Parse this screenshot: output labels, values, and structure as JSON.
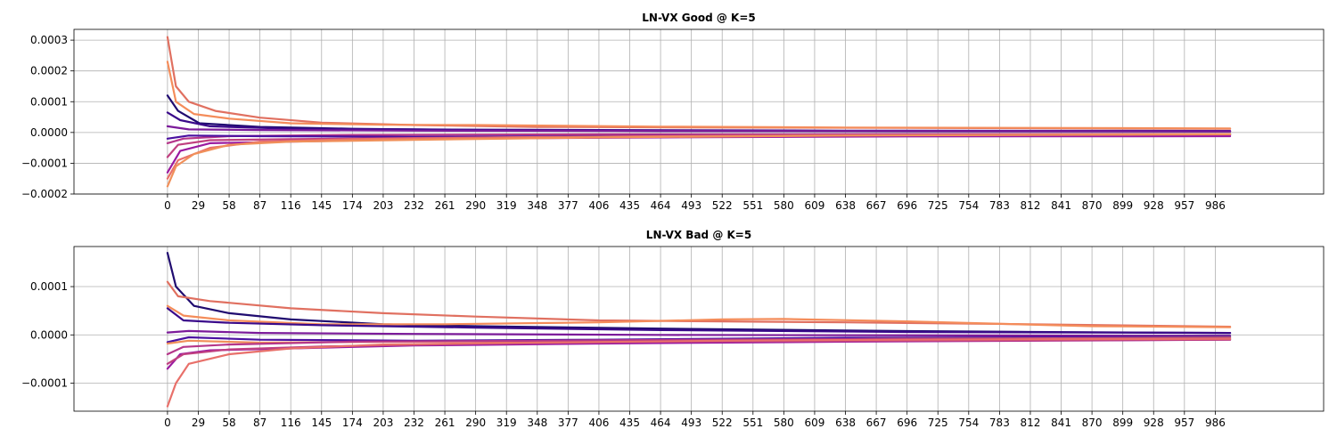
{
  "chart_data": [
    {
      "type": "line",
      "title": "LN-VX Good @ K=5",
      "xlim": [
        -88,
        1088
      ],
      "ylim": [
        -0.0002,
        0.000335
      ],
      "yticks": [
        {
          "value": 0.0003,
          "label": "0.0003"
        },
        {
          "value": 0.0002,
          "label": "0.0002"
        },
        {
          "value": 0.0001,
          "label": "0.0001"
        },
        {
          "value": 0.0,
          "label": "0.0000"
        },
        {
          "value": -0.0001,
          "label": "−0.0001"
        },
        {
          "value": -0.0002,
          "label": "−0.0002"
        }
      ],
      "grid": true,
      "series": [
        {
          "color": "#e07060",
          "points": [
            [
              0,
              0.00031
            ],
            [
              8,
              0.00015
            ],
            [
              20,
              0.0001
            ],
            [
              45,
              7e-05
            ],
            [
              87,
              4.8e-05
            ],
            [
              145,
              3.2e-05
            ],
            [
              232,
              2.4e-05
            ],
            [
              348,
              1.8e-05
            ],
            [
              522,
              1.6e-05
            ],
            [
              696,
              1.5e-05
            ],
            [
              870,
              1.3e-05
            ],
            [
              1000,
              1.2e-05
            ]
          ]
        },
        {
          "color": "#f48c5a",
          "points": [
            [
              0,
              0.00023
            ],
            [
              8,
              0.0001
            ],
            [
              25,
              6e-05
            ],
            [
              58,
              4.5e-05
            ],
            [
              116,
              3e-05
            ],
            [
              203,
              2.5e-05
            ],
            [
              290,
              2.4e-05
            ],
            [
              464,
              1.9e-05
            ],
            [
              638,
              1.6e-05
            ],
            [
              812,
              1.5e-05
            ],
            [
              1000,
              1.3e-05
            ]
          ]
        },
        {
          "color": "#200c70",
          "points": [
            [
              0,
              0.00012
            ],
            [
              10,
              7e-05
            ],
            [
              30,
              3e-05
            ],
            [
              87,
              1.8e-05
            ],
            [
              174,
              1.2e-05
            ],
            [
              290,
              8e-06
            ],
            [
              464,
              5e-06
            ],
            [
              696,
              4e-06
            ],
            [
              1000,
              3e-06
            ]
          ]
        },
        {
          "color": "#3a0a8a",
          "points": [
            [
              0,
              6.5e-05
            ],
            [
              12,
              4e-05
            ],
            [
              40,
              2e-05
            ],
            [
              116,
              1.2e-05
            ],
            [
              232,
              1e-05
            ],
            [
              406,
              8e-06
            ],
            [
              638,
              6e-06
            ],
            [
              1000,
              5e-06
            ]
          ]
        },
        {
          "color": "#7b1a9a",
          "points": [
            [
              0,
              2e-05
            ],
            [
              20,
              1e-05
            ],
            [
              87,
              8e-06
            ],
            [
              232,
              6e-06
            ],
            [
              464,
              5e-06
            ],
            [
              1000,
              4e-06
            ]
          ]
        },
        {
          "color": "#b5368a",
          "points": [
            [
              0,
              -3.5e-05
            ],
            [
              15,
              -2e-05
            ],
            [
              58,
              -1.2e-05
            ],
            [
              174,
              -8e-06
            ],
            [
              406,
              -6e-06
            ],
            [
              1000,
              -5e-06
            ]
          ]
        },
        {
          "color": "#4a10a0",
          "points": [
            [
              0,
              -2e-05
            ],
            [
              20,
              -1e-05
            ],
            [
              87,
              -1.2e-05
            ],
            [
              232,
              -1.4e-05
            ],
            [
              406,
              -1.2e-05
            ],
            [
              638,
              -1e-05
            ],
            [
              1000,
              -8e-06
            ]
          ]
        },
        {
          "color": "#c04080",
          "points": [
            [
              0,
              -8e-05
            ],
            [
              10,
              -4e-05
            ],
            [
              40,
              -2.5e-05
            ],
            [
              116,
              -2.2e-05
            ],
            [
              232,
              -1.8e-05
            ],
            [
              464,
              -1.2e-05
            ],
            [
              1000,
              -8e-06
            ]
          ]
        },
        {
          "color": "#9a1aa0",
          "points": [
            [
              0,
              -0.00013
            ],
            [
              12,
              -6e-05
            ],
            [
              40,
              -3.5e-05
            ],
            [
              116,
              -3e-05
            ],
            [
              261,
              -2e-05
            ],
            [
              464,
              -1.6e-05
            ],
            [
              696,
              -1.3e-05
            ],
            [
              1000,
              -1.2e-05
            ]
          ]
        },
        {
          "color": "#e8706a",
          "points": [
            [
              0,
              -0.00015
            ],
            [
              10,
              -9e-05
            ],
            [
              40,
              -5e-05
            ],
            [
              87,
              -3e-05
            ],
            [
              174,
              -2.2e-05
            ],
            [
              348,
              -1.5e-05
            ],
            [
              580,
              -1e-05
            ],
            [
              1000,
              -5e-06
            ]
          ]
        },
        {
          "color": "#f0905a",
          "points": [
            [
              0,
              -0.000175
            ],
            [
              8,
              -0.00011
            ],
            [
              25,
              -7e-05
            ],
            [
              58,
              -4e-05
            ],
            [
              116,
              -3e-05
            ],
            [
              232,
              -2.4e-05
            ],
            [
              406,
              -1.6e-05
            ],
            [
              638,
              -1e-05
            ],
            [
              1000,
              -6e-06
            ]
          ]
        }
      ]
    },
    {
      "type": "line",
      "title": "LN-VX Bad @ K=5",
      "xlim": [
        -88,
        1088
      ],
      "ylim": [
        -0.000158,
        0.000183
      ],
      "yticks": [
        {
          "value": 0.0001,
          "label": "0.0001"
        },
        {
          "value": 0.0,
          "label": "0.0000"
        },
        {
          "value": -0.0001,
          "label": "−0.0001"
        }
      ],
      "grid": true,
      "series": [
        {
          "color": "#200c70",
          "points": [
            [
              0,
              0.00017
            ],
            [
              8,
              0.0001
            ],
            [
              25,
              6e-05
            ],
            [
              58,
              4.5e-05
            ],
            [
              116,
              3.2e-05
            ],
            [
              203,
              2.2e-05
            ],
            [
              290,
              1.8e-05
            ],
            [
              464,
              1.3e-05
            ],
            [
              638,
              9e-06
            ],
            [
              812,
              6e-06
            ],
            [
              1000,
              4e-06
            ]
          ]
        },
        {
          "color": "#e07060",
          "points": [
            [
              0,
              0.00011
            ],
            [
              10,
              8e-05
            ],
            [
              40,
              7e-05
            ],
            [
              116,
              5.5e-05
            ],
            [
              203,
              4.5e-05
            ],
            [
              290,
              3.8e-05
            ],
            [
              406,
              3e-05
            ],
            [
              522,
              2.8e-05
            ],
            [
              638,
              2.6e-05
            ],
            [
              812,
              2.2e-05
            ],
            [
              1000,
              1.7e-05
            ]
          ]
        },
        {
          "color": "#f48c5a",
          "points": [
            [
              0,
              6e-05
            ],
            [
              15,
              4e-05
            ],
            [
              58,
              3e-05
            ],
            [
              145,
              2.2e-05
            ],
            [
              261,
              2.2e-05
            ],
            [
              406,
              2.6e-05
            ],
            [
              522,
              3.2e-05
            ],
            [
              580,
              3.3e-05
            ],
            [
              696,
              2.8e-05
            ],
            [
              870,
              1.8e-05
            ],
            [
              1000,
              1.6e-05
            ]
          ]
        },
        {
          "color": "#3a0a8a",
          "points": [
            [
              0,
              5.5e-05
            ],
            [
              15,
              3e-05
            ],
            [
              58,
              2.5e-05
            ],
            [
              145,
              2e-05
            ],
            [
              290,
              1.5e-05
            ],
            [
              464,
              1e-05
            ],
            [
              696,
              6e-06
            ],
            [
              1000,
              4e-06
            ]
          ]
        },
        {
          "color": "#7b1a9a",
          "points": [
            [
              0,
              5e-06
            ],
            [
              20,
              8e-06
            ],
            [
              87,
              4e-06
            ],
            [
              232,
              2e-06
            ],
            [
              464,
              0.0
            ],
            [
              1000,
              -2e-06
            ]
          ]
        },
        {
          "color": "#4a10a0",
          "points": [
            [
              0,
              -1.5e-05
            ],
            [
              20,
              -5e-06
            ],
            [
              87,
              -1e-05
            ],
            [
              232,
              -1.2e-05
            ],
            [
              406,
              -1e-05
            ],
            [
              638,
              -6e-06
            ],
            [
              1000,
              -4e-06
            ]
          ]
        },
        {
          "color": "#f0905a",
          "points": [
            [
              0,
              -1.8e-05
            ],
            [
              20,
              -1.2e-05
            ],
            [
              87,
              -1.6e-05
            ],
            [
              232,
              -1.4e-05
            ],
            [
              464,
              -1.2e-05
            ],
            [
              696,
              -8e-06
            ],
            [
              1000,
              -6e-06
            ]
          ]
        },
        {
          "color": "#b5368a",
          "points": [
            [
              0,
              -4e-05
            ],
            [
              15,
              -2.5e-05
            ],
            [
              58,
              -2e-05
            ],
            [
              174,
              -1.4e-05
            ],
            [
              348,
              -1.2e-05
            ],
            [
              580,
              -9e-06
            ],
            [
              1000,
              -7e-06
            ]
          ]
        },
        {
          "color": "#9a1aa0",
          "points": [
            [
              0,
              -7e-05
            ],
            [
              12,
              -4e-05
            ],
            [
              40,
              -3.2e-05
            ],
            [
              116,
              -2.8e-05
            ],
            [
              232,
              -2.2e-05
            ],
            [
              406,
              -1.8e-05
            ],
            [
              638,
              -1.4e-05
            ],
            [
              1000,
              -1e-05
            ]
          ]
        },
        {
          "color": "#c04080",
          "points": [
            [
              0,
              -6e-05
            ],
            [
              15,
              -4e-05
            ],
            [
              58,
              -3e-05
            ],
            [
              145,
              -2.4e-05
            ],
            [
              290,
              -1.8e-05
            ],
            [
              464,
              -1.4e-05
            ],
            [
              1000,
              -1e-05
            ]
          ]
        },
        {
          "color": "#e8706a",
          "points": [
            [
              0,
              -0.000148
            ],
            [
              8,
              -0.0001
            ],
            [
              20,
              -6e-05
            ],
            [
              58,
              -4e-05
            ],
            [
              116,
              -2.8e-05
            ],
            [
              203,
              -2e-05
            ],
            [
              348,
              -1.6e-05
            ],
            [
              522,
              -1.2e-05
            ],
            [
              696,
              -1e-05
            ],
            [
              1000,
              -8e-06
            ]
          ]
        }
      ]
    }
  ],
  "x_ticks": [
    0,
    29,
    58,
    87,
    116,
    145,
    174,
    203,
    232,
    261,
    290,
    319,
    348,
    377,
    406,
    435,
    464,
    493,
    522,
    551,
    580,
    609,
    638,
    667,
    696,
    725,
    754,
    783,
    812,
    841,
    870,
    899,
    928,
    957,
    986
  ]
}
